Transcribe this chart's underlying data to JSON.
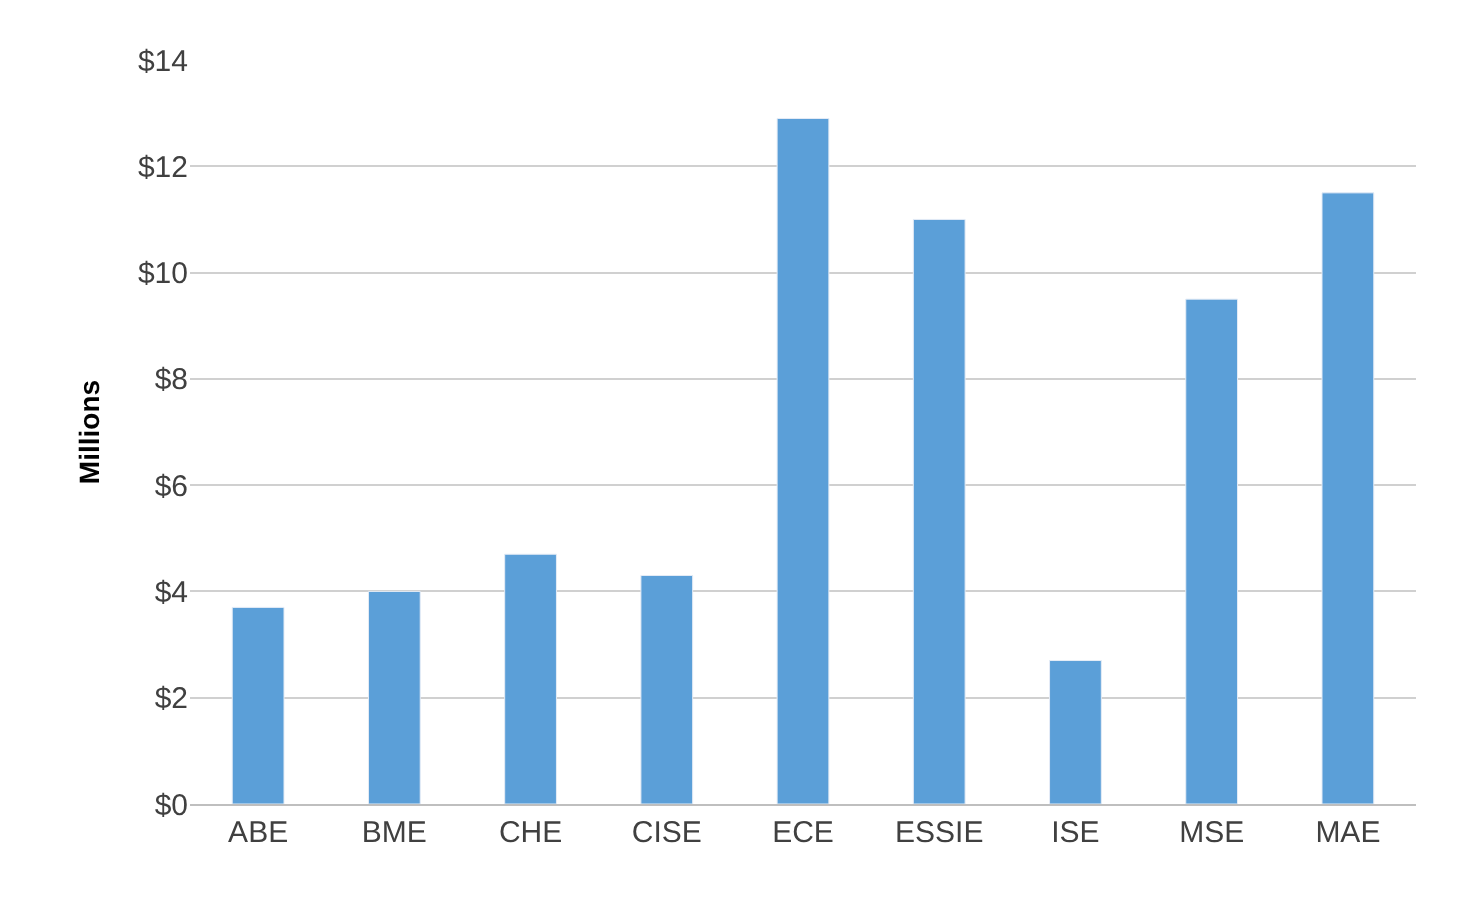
{
  "chart_data": {
    "type": "bar",
    "ylabel": "Millions",
    "categories": [
      "ABE",
      "BME",
      "CHE",
      "CISE",
      "ECE",
      "ESSIE",
      "ISE",
      "MSE",
      "MAE"
    ],
    "values": [
      3.7,
      4.0,
      4.7,
      4.3,
      12.9,
      11.0,
      2.7,
      9.5,
      11.5
    ],
    "color": "#5b9fd8",
    "ylim": [
      0,
      14
    ],
    "yticks": [
      {
        "value": 0,
        "label": "$0"
      },
      {
        "value": 2,
        "label": "$2"
      },
      {
        "value": 4,
        "label": "$4"
      },
      {
        "value": 6,
        "label": "$6"
      },
      {
        "value": 8,
        "label": "$8"
      },
      {
        "value": 10,
        "label": "$10"
      },
      {
        "value": 12,
        "label": "$12"
      },
      {
        "value": 14,
        "label": "$14"
      }
    ],
    "grid": "y",
    "legend": false
  }
}
